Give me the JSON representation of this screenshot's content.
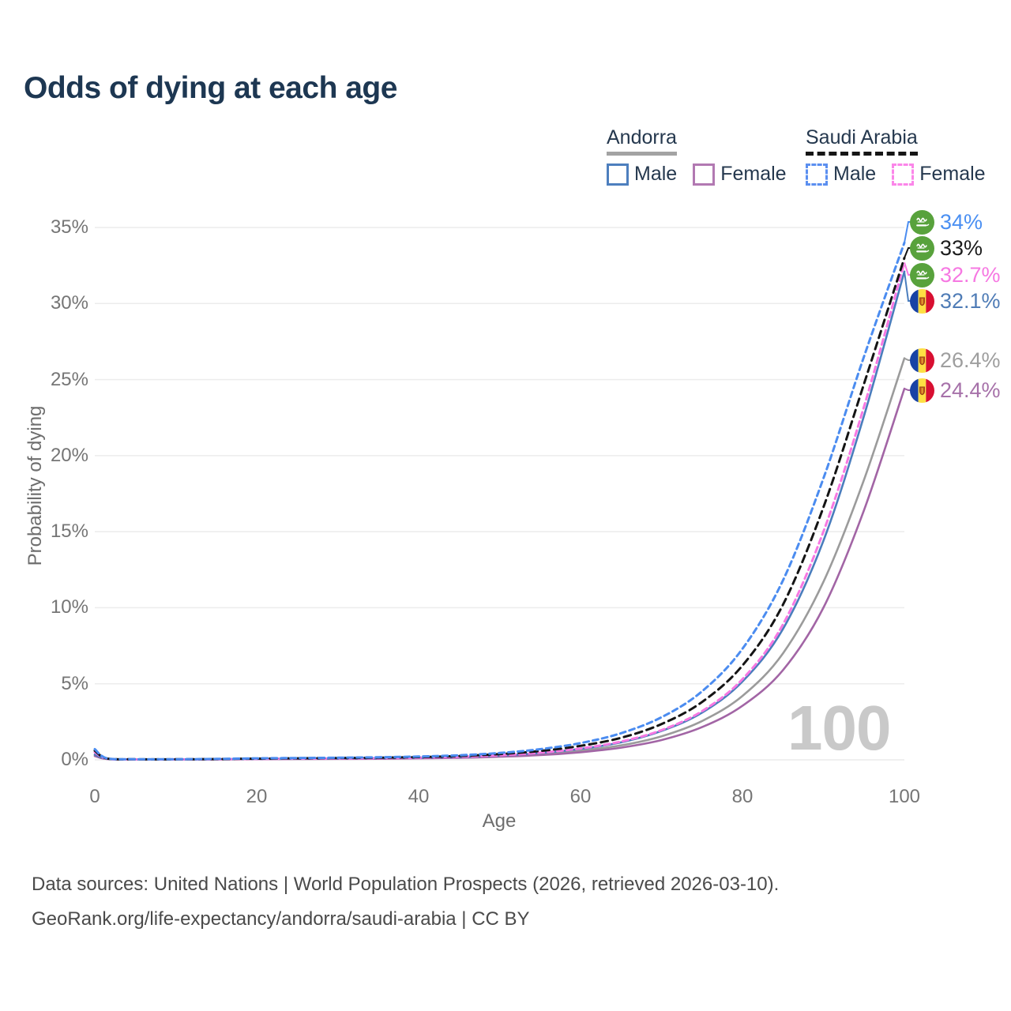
{
  "title": "Odds of dying at each age",
  "legend": {
    "groups": [
      {
        "label": "Andorra",
        "line_style": "solid",
        "underline_color": "#a3a3a3",
        "items": [
          {
            "label": "Male",
            "color": "#4d7fbe"
          },
          {
            "label": "Female",
            "color": "#b279b2"
          }
        ]
      },
      {
        "label": "Saudi Arabia",
        "line_style": "dashed",
        "underline_color": "#161616",
        "items": [
          {
            "label": "Male",
            "color": "#5b8ff0"
          },
          {
            "label": "Female",
            "color": "#fb86e9"
          }
        ]
      }
    ]
  },
  "watermark": {
    "label": "100"
  },
  "footer": {
    "line1": "Data sources: United Nations | World Population Prospects (2026, retrieved 2026-03-10).",
    "line2": "GeoRank.org/life-expectancy/andorra/saudi-arabia | CC BY"
  },
  "chart_data": {
    "type": "line",
    "title": "Odds of dying at each age",
    "xlabel": "Age",
    "ylabel": "Probability of dying",
    "xlim": [
      0,
      100
    ],
    "ylim": [
      0,
      35
    ],
    "x_ticks": [
      0,
      20,
      40,
      60,
      80,
      100
    ],
    "y_ticks": [
      "0%",
      "5%",
      "10%",
      "15%",
      "20%",
      "25%",
      "30%",
      "35%"
    ],
    "grid": "horizontal",
    "legend_position": "top-right",
    "ages": [
      0,
      1.5,
      5,
      10,
      15,
      20,
      25,
      30,
      35,
      40,
      45,
      50,
      55,
      60,
      65,
      70,
      75,
      80,
      85,
      90,
      95,
      100
    ],
    "series": [
      {
        "name": "Saudi Arabia Male",
        "country": "Saudi Arabia",
        "sex": "Male",
        "color": "#4b8cf0",
        "dash": "7 5",
        "flag": "saudi",
        "end_value": 34,
        "end_label": "34%",
        "end_label_color": "#4a8ff2",
        "values": [
          0.7,
          0.1,
          0.04,
          0.04,
          0.06,
          0.1,
          0.12,
          0.14,
          0.17,
          0.22,
          0.3,
          0.45,
          0.7,
          1.1,
          1.75,
          2.8,
          4.5,
          7.3,
          11.8,
          18.5,
          26.5,
          34
        ]
      },
      {
        "name": "Saudi Arabia Both sexes",
        "country": "Saudi Arabia",
        "sex": "Both",
        "color": "#141414",
        "dash": "9 6",
        "flag": "saudi",
        "end_value": 33,
        "end_label": "33%",
        "end_label_color": "#1c1c1c",
        "values": [
          0.6,
          0.09,
          0.035,
          0.035,
          0.05,
          0.08,
          0.1,
          0.12,
          0.14,
          0.18,
          0.25,
          0.38,
          0.58,
          0.92,
          1.45,
          2.35,
          3.8,
          6.2,
          10.2,
          16.6,
          24.7,
          33
        ]
      },
      {
        "name": "Saudi Arabia Female",
        "country": "Saudi Arabia",
        "sex": "Female",
        "color": "#f778e2",
        "dash": "7 5",
        "flag": "saudi",
        "end_value": 32.7,
        "end_label": "32.7%",
        "end_label_color": "#f678e2",
        "values": [
          0.5,
          0.08,
          0.03,
          0.03,
          0.04,
          0.06,
          0.08,
          0.09,
          0.11,
          0.14,
          0.2,
          0.3,
          0.47,
          0.75,
          1.2,
          1.95,
          3.2,
          5.3,
          8.9,
          15.0,
          23.2,
          32.7
        ]
      },
      {
        "name": "Andorra Male",
        "country": "Andorra",
        "sex": "Male",
        "color": "#4a7dbd",
        "dash": "",
        "flag": "andorra",
        "end_value": 32.1,
        "end_label": "32.1%",
        "end_label_color": "#4f7cb6",
        "values": [
          0.35,
          0.07,
          0.03,
          0.03,
          0.04,
          0.06,
          0.08,
          0.09,
          0.11,
          0.14,
          0.19,
          0.29,
          0.45,
          0.72,
          1.15,
          1.9,
          3.1,
          5.15,
          8.6,
          14.4,
          22.6,
          32.1
        ]
      },
      {
        "name": "Andorra Both sexes",
        "country": "Andorra",
        "sex": "Both",
        "color": "#9b9b9b",
        "dash": "",
        "flag": "andorra",
        "end_value": 26.4,
        "end_label": "26.4%",
        "end_label_color": "#9e9e9e",
        "values": [
          0.3,
          0.06,
          0.025,
          0.025,
          0.03,
          0.05,
          0.06,
          0.07,
          0.09,
          0.12,
          0.16,
          0.24,
          0.38,
          0.6,
          0.95,
          1.55,
          2.55,
          4.2,
          7.0,
          11.7,
          18.4,
          26.4
        ]
      },
      {
        "name": "Andorra Female",
        "country": "Andorra",
        "sex": "Female",
        "color": "#a265a5",
        "dash": "",
        "flag": "andorra",
        "end_value": 24.4,
        "end_label": "24.4%",
        "end_label_color": "#a671a9",
        "values": [
          0.25,
          0.05,
          0.02,
          0.02,
          0.025,
          0.04,
          0.05,
          0.06,
          0.07,
          0.1,
          0.13,
          0.2,
          0.31,
          0.5,
          0.8,
          1.3,
          2.15,
          3.55,
          5.9,
          10.0,
          16.4,
          24.4
        ]
      }
    ]
  }
}
